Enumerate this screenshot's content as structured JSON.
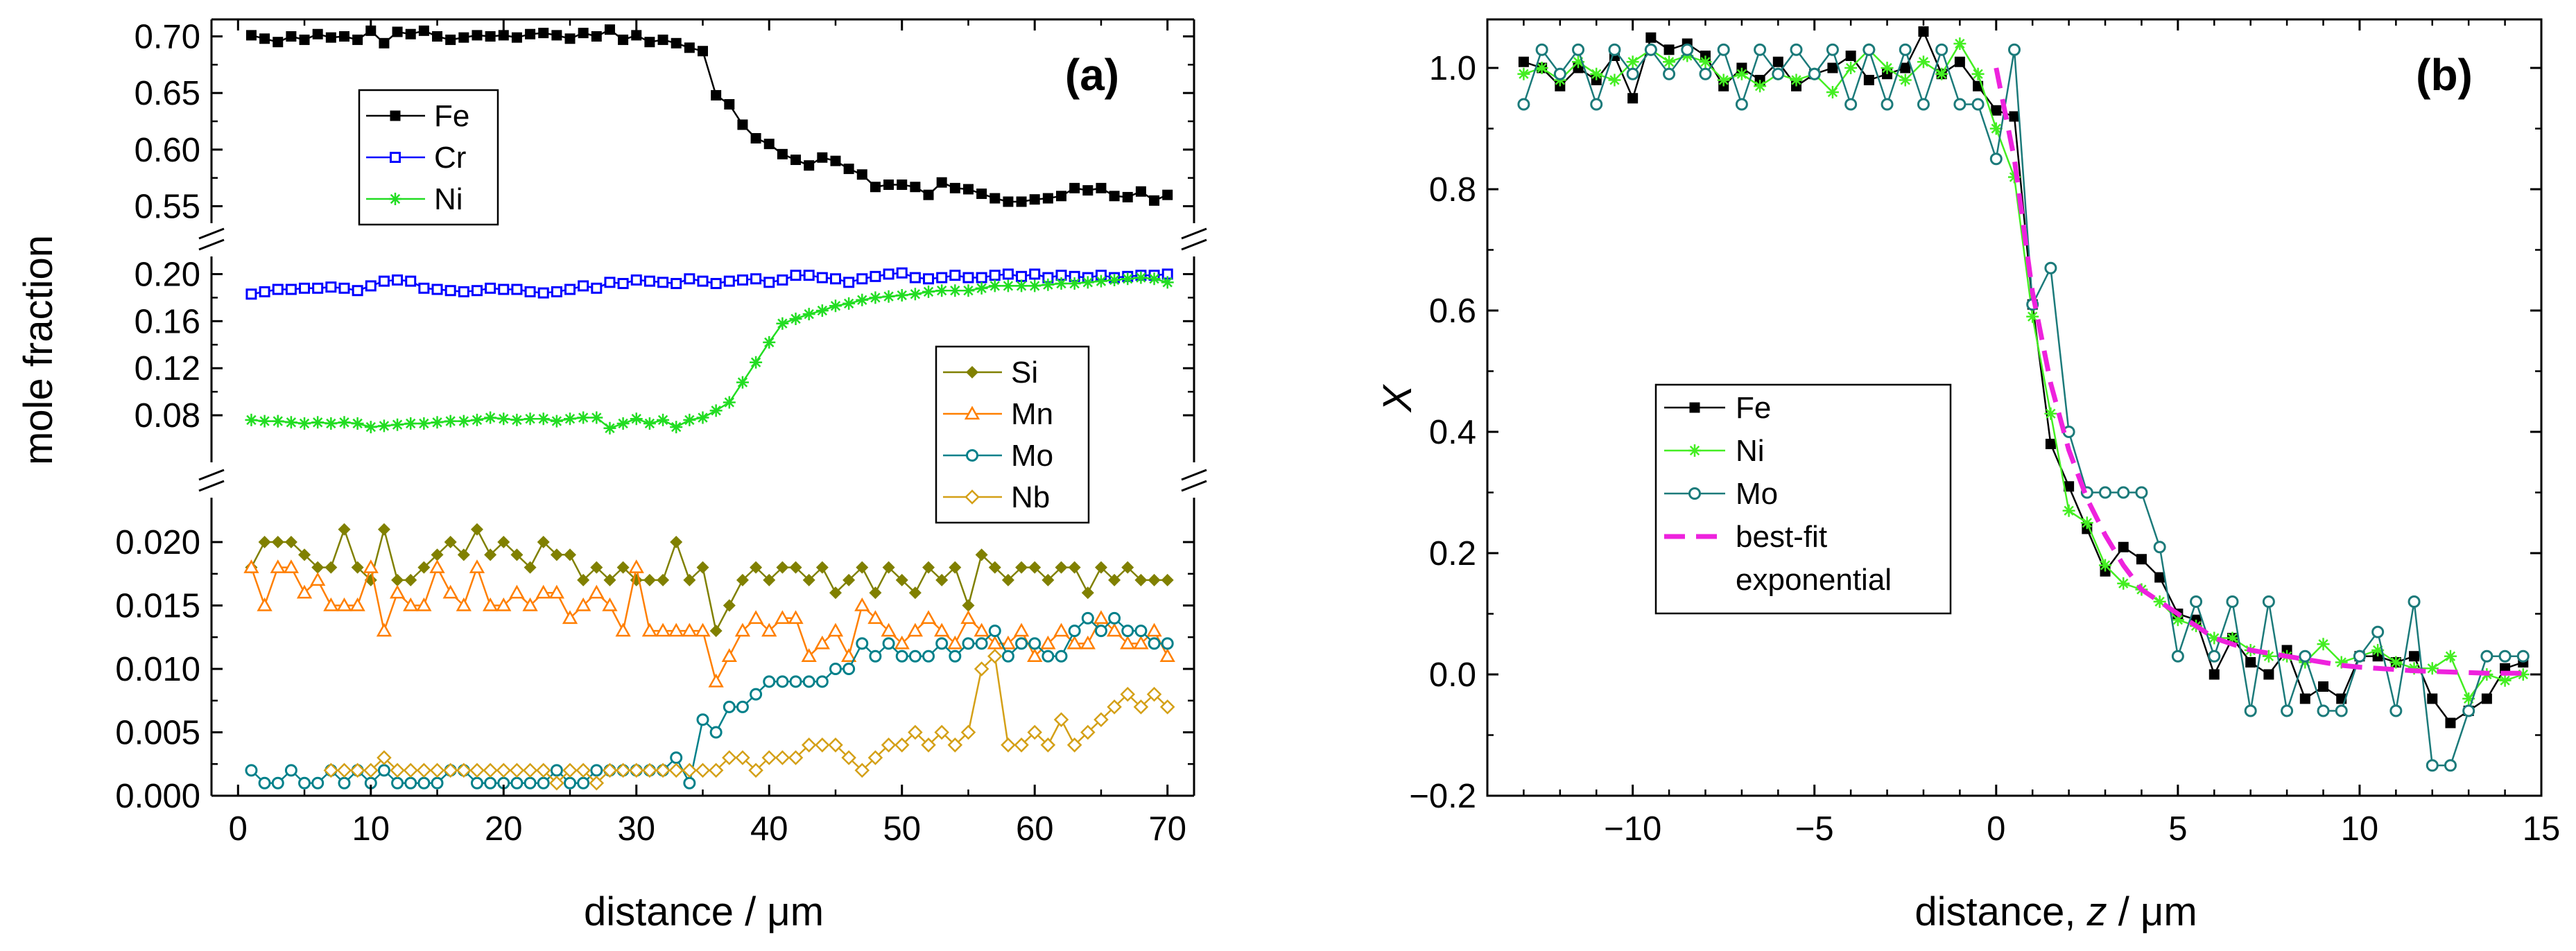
{
  "chart_data": [
    {
      "type": "line",
      "panel_label": "(a)",
      "xlabel": "distance / μm",
      "ylabel": "mole fraction",
      "xlim": [
        -2,
        72
      ],
      "x_ticks": [
        0,
        10,
        20,
        30,
        40,
        50,
        60,
        70
      ],
      "x_tick_labels": [
        "0",
        "10",
        "20",
        "30",
        "40",
        "50",
        "60",
        "70"
      ],
      "segments": [
        {
          "name": "top",
          "ylim": [
            0.535,
            0.715
          ],
          "ticks": [
            0.55,
            0.6,
            0.65,
            0.7
          ],
          "tick_labels": [
            "0.55",
            "0.60",
            "0.65",
            "0.70"
          ]
        },
        {
          "name": "middle",
          "ylim": [
            0.04,
            0.215
          ],
          "ticks": [
            0.08,
            0.12,
            0.16,
            0.2
          ],
          "tick_labels": [
            "0.08",
            "0.12",
            "0.16",
            "0.20"
          ]
        },
        {
          "name": "bottom",
          "ylim": [
            0.0,
            0.0235
          ],
          "ticks": [
            0.0,
            0.005,
            0.01,
            0.015,
            0.02
          ],
          "tick_labels": [
            "0.000",
            "0.005",
            "0.010",
            "0.015",
            "0.020"
          ]
        }
      ],
      "x": [
        1,
        2,
        3,
        4,
        5,
        6,
        7,
        8,
        9,
        10,
        11,
        12,
        13,
        14,
        15,
        16,
        17,
        18,
        19,
        20,
        21,
        22,
        23,
        24,
        25,
        26,
        27,
        28,
        29,
        30,
        31,
        32,
        33,
        34,
        35,
        36,
        37,
        38,
        39,
        40,
        41,
        42,
        43,
        44,
        45,
        46,
        47,
        48,
        49,
        50,
        51,
        52,
        53,
        54,
        55,
        56,
        57,
        58,
        59,
        60,
        61,
        62,
        63,
        64,
        65,
        66,
        67,
        68,
        69,
        70
      ],
      "series": [
        {
          "name": "Fe",
          "color": "#000000",
          "marker": "square-filled",
          "segment": "top",
          "values": [
            0.701,
            0.698,
            0.695,
            0.7,
            0.697,
            0.702,
            0.699,
            0.7,
            0.697,
            0.705,
            0.694,
            0.704,
            0.702,
            0.705,
            0.7,
            0.697,
            0.699,
            0.701,
            0.7,
            0.701,
            0.699,
            0.702,
            0.703,
            0.701,
            0.698,
            0.703,
            0.7,
            0.706,
            0.697,
            0.701,
            0.695,
            0.697,
            0.694,
            0.69,
            0.687,
            0.648,
            0.64,
            0.622,
            0.61,
            0.605,
            0.596,
            0.591,
            0.586,
            0.593,
            0.59,
            0.583,
            0.578,
            0.567,
            0.569,
            0.569,
            0.567,
            0.56,
            0.571,
            0.566,
            0.565,
            0.561,
            0.557,
            0.554,
            0.554,
            0.556,
            0.557,
            0.559,
            0.566,
            0.564,
            0.566,
            0.559,
            0.558,
            0.563,
            0.555,
            0.56
          ]
        },
        {
          "name": "Cr",
          "color": "#0000ff",
          "marker": "square-open",
          "segment": "middle",
          "values": [
            0.183,
            0.185,
            0.187,
            0.187,
            0.188,
            0.188,
            0.189,
            0.188,
            0.186,
            0.19,
            0.194,
            0.195,
            0.194,
            0.188,
            0.187,
            0.186,
            0.185,
            0.186,
            0.188,
            0.187,
            0.187,
            0.185,
            0.184,
            0.185,
            0.187,
            0.19,
            0.188,
            0.193,
            0.192,
            0.195,
            0.194,
            0.193,
            0.192,
            0.196,
            0.194,
            0.192,
            0.194,
            0.195,
            0.196,
            0.193,
            0.195,
            0.199,
            0.199,
            0.197,
            0.196,
            0.193,
            0.196,
            0.198,
            0.2,
            0.201,
            0.197,
            0.196,
            0.197,
            0.199,
            0.197,
            0.197,
            0.199,
            0.2,
            0.198,
            0.2,
            0.197,
            0.199,
            0.198,
            0.197,
            0.199,
            0.197,
            0.198,
            0.199,
            0.199,
            0.2
          ]
        },
        {
          "name": "Ni",
          "color": "#22dd22",
          "marker": "asterisk",
          "segment": "middle",
          "values": [
            0.076,
            0.075,
            0.075,
            0.074,
            0.073,
            0.074,
            0.073,
            0.074,
            0.073,
            0.07,
            0.071,
            0.072,
            0.073,
            0.073,
            0.074,
            0.075,
            0.075,
            0.076,
            0.078,
            0.077,
            0.076,
            0.077,
            0.077,
            0.075,
            0.077,
            0.078,
            0.078,
            0.069,
            0.073,
            0.077,
            0.073,
            0.076,
            0.07,
            0.076,
            0.078,
            0.084,
            0.091,
            0.108,
            0.125,
            0.142,
            0.158,
            0.162,
            0.166,
            0.169,
            0.173,
            0.175,
            0.178,
            0.18,
            0.181,
            0.182,
            0.183,
            0.185,
            0.186,
            0.186,
            0.186,
            0.188,
            0.19,
            0.19,
            0.19,
            0.19,
            0.191,
            0.192,
            0.192,
            0.193,
            0.194,
            0.195,
            0.196,
            0.197,
            0.196,
            0.193
          ]
        },
        {
          "name": "Si",
          "color": "#808000",
          "marker": "diamond-filled",
          "segment": "bottom",
          "values": [
            0.018,
            0.02,
            0.02,
            0.02,
            0.019,
            0.018,
            0.018,
            0.021,
            0.018,
            0.017,
            0.021,
            0.017,
            0.017,
            0.018,
            0.019,
            0.02,
            0.019,
            0.021,
            0.019,
            0.02,
            0.019,
            0.018,
            0.02,
            0.019,
            0.019,
            0.017,
            0.018,
            0.017,
            0.018,
            0.017,
            0.017,
            0.017,
            0.02,
            0.017,
            0.018,
            0.013,
            0.015,
            0.017,
            0.018,
            0.017,
            0.018,
            0.018,
            0.017,
            0.018,
            0.016,
            0.017,
            0.018,
            0.016,
            0.018,
            0.017,
            0.016,
            0.018,
            0.017,
            0.018,
            0.015,
            0.019,
            0.018,
            0.017,
            0.018,
            0.018,
            0.017,
            0.018,
            0.018,
            0.016,
            0.018,
            0.017,
            0.018,
            0.017,
            0.017,
            0.017
          ]
        },
        {
          "name": "Mn",
          "color": "#ff7f00",
          "marker": "triangle-open",
          "segment": "bottom",
          "values": [
            0.018,
            0.015,
            0.018,
            0.018,
            0.016,
            0.017,
            0.015,
            0.015,
            0.015,
            0.018,
            0.013,
            0.016,
            0.015,
            0.015,
            0.018,
            0.016,
            0.015,
            0.018,
            0.015,
            0.015,
            0.016,
            0.015,
            0.016,
            0.016,
            0.014,
            0.015,
            0.016,
            0.015,
            0.013,
            0.018,
            0.013,
            0.013,
            0.013,
            0.013,
            0.013,
            0.009,
            0.011,
            0.013,
            0.014,
            0.013,
            0.014,
            0.014,
            0.011,
            0.012,
            0.013,
            0.011,
            0.015,
            0.014,
            0.013,
            0.012,
            0.013,
            0.014,
            0.013,
            0.012,
            0.014,
            0.013,
            0.012,
            0.012,
            0.013,
            0.011,
            0.012,
            0.013,
            0.012,
            0.012,
            0.014,
            0.013,
            0.012,
            0.012,
            0.013,
            0.011
          ]
        },
        {
          "name": "Mo",
          "color": "#00808a",
          "marker": "circle-open",
          "segment": "bottom",
          "values": [
            0.002,
            0.001,
            0.001,
            0.002,
            0.001,
            0.001,
            0.002,
            0.001,
            0.002,
            0.001,
            0.002,
            0.001,
            0.001,
            0.001,
            0.001,
            0.002,
            0.002,
            0.001,
            0.001,
            0.001,
            0.001,
            0.001,
            0.001,
            0.002,
            0.001,
            0.001,
            0.002,
            0.002,
            0.002,
            0.002,
            0.002,
            0.002,
            0.003,
            0.001,
            0.006,
            0.005,
            0.007,
            0.007,
            0.008,
            0.009,
            0.009,
            0.009,
            0.009,
            0.009,
            0.01,
            0.01,
            0.012,
            0.011,
            0.012,
            0.011,
            0.011,
            0.011,
            0.012,
            0.011,
            0.012,
            0.012,
            0.013,
            0.011,
            0.012,
            0.012,
            0.011,
            0.011,
            0.013,
            0.014,
            0.013,
            0.014,
            0.013,
            0.013,
            0.012,
            0.012
          ]
        },
        {
          "name": "Nb",
          "color": "#d4a017",
          "marker": "diamond-open",
          "segment": "bottom",
          "values": [
            null,
            null,
            null,
            null,
            null,
            null,
            0.002,
            0.002,
            0.002,
            0.002,
            0.003,
            0.002,
            0.002,
            0.002,
            0.002,
            0.002,
            0.002,
            0.002,
            0.002,
            0.002,
            0.002,
            0.002,
            0.002,
            0.001,
            0.002,
            0.002,
            0.001,
            0.002,
            0.002,
            0.002,
            0.002,
            0.002,
            0.002,
            0.002,
            0.002,
            0.002,
            0.003,
            0.003,
            0.002,
            0.003,
            0.003,
            0.003,
            0.004,
            0.004,
            0.004,
            0.003,
            0.002,
            0.003,
            0.004,
            0.004,
            0.005,
            0.004,
            0.005,
            0.004,
            0.005,
            0.01,
            0.011,
            0.004,
            0.004,
            0.005,
            0.004,
            0.006,
            0.004,
            0.005,
            0.006,
            0.007,
            0.008,
            0.007,
            0.008,
            0.007
          ]
        }
      ],
      "legends": [
        {
          "position": "upper-left",
          "entries": [
            "Fe",
            "Cr",
            "Ni"
          ]
        },
        {
          "position": "middle-right",
          "entries": [
            "Si",
            "Mn",
            "Mo",
            "Nb"
          ]
        }
      ]
    },
    {
      "type": "line",
      "panel_label": "(b)",
      "xlabel_parts": [
        "distance, ",
        "z",
        " / μm"
      ],
      "ylabel": "X",
      "xlim": [
        -14,
        15
      ],
      "ylim": [
        -0.2,
        1.08
      ],
      "x_ticks": [
        -10,
        -5,
        0,
        5,
        10,
        15
      ],
      "x_tick_labels": [
        "−10",
        "−5",
        "0",
        "5",
        "10",
        "15"
      ],
      "y_ticks": [
        -0.2,
        0.0,
        0.2,
        0.4,
        0.6,
        0.8,
        1.0
      ],
      "y_tick_labels": [
        "−0.2",
        "0.0",
        "0.2",
        "0.4",
        "0.6",
        "0.8",
        "1.0"
      ],
      "x": [
        -13,
        -12.5,
        -12,
        -11.5,
        -11,
        -10.5,
        -10,
        -9.5,
        -9,
        -8.5,
        -8,
        -7.5,
        -7,
        -6.5,
        -6,
        -5.5,
        -5,
        -4.5,
        -4,
        -3.5,
        -3,
        -2.5,
        -2,
        -1.5,
        -1,
        -0.5,
        0,
        0.5,
        1,
        1.5,
        2,
        2.5,
        3,
        3.5,
        4,
        4.5,
        5,
        5.5,
        6,
        6.5,
        7,
        7.5,
        8,
        8.5,
        9,
        9.5,
        10,
        10.5,
        11,
        11.5,
        12,
        12.5,
        13,
        13.5,
        14,
        14.5
      ],
      "series": [
        {
          "name": "Fe",
          "color": "#000000",
          "marker": "square-filled",
          "values": [
            1.01,
            1.0,
            0.97,
            1.0,
            0.98,
            1.02,
            0.95,
            1.05,
            1.03,
            1.04,
            1.02,
            0.97,
            1.0,
            0.98,
            1.01,
            0.97,
            0.99,
            1.0,
            1.02,
            0.98,
            0.99,
            1.0,
            1.06,
            0.99,
            1.01,
            0.97,
            0.93,
            0.92,
            0.61,
            0.38,
            0.31,
            0.24,
            0.17,
            0.21,
            0.19,
            0.16,
            0.1,
            0.09,
            0.0,
            0.06,
            0.02,
            0.0,
            0.04,
            -0.04,
            -0.02,
            -0.04,
            0.03,
            0.03,
            0.02,
            0.03,
            -0.04,
            -0.08,
            -0.06,
            -0.04,
            0.01,
            0.02
          ]
        },
        {
          "name": "Ni",
          "color": "#44ee22",
          "marker": "asterisk",
          "values": [
            0.99,
            1.0,
            0.98,
            1.01,
            0.99,
            0.98,
            1.01,
            1.03,
            1.01,
            1.02,
            1.01,
            0.98,
            0.99,
            0.97,
            0.99,
            0.98,
            0.99,
            0.96,
            1.0,
            1.03,
            1.0,
            0.98,
            1.01,
            0.99,
            1.04,
            0.99,
            0.9,
            0.82,
            0.59,
            0.43,
            0.27,
            0.25,
            0.18,
            0.15,
            0.14,
            0.12,
            0.09,
            0.08,
            0.06,
            0.06,
            0.04,
            0.03,
            0.03,
            0.02,
            0.05,
            0.02,
            0.03,
            0.04,
            0.02,
            0.01,
            0.01,
            0.03,
            -0.04,
            0.0,
            -0.01,
            0.0
          ]
        },
        {
          "name": "Mo",
          "color": "#1b7a7a",
          "marker": "circle-open",
          "values": [
            0.94,
            1.03,
            0.99,
            1.03,
            0.94,
            1.03,
            0.99,
            1.03,
            0.99,
            1.03,
            0.99,
            1.03,
            0.94,
            1.03,
            0.99,
            1.03,
            0.99,
            1.03,
            0.94,
            1.03,
            0.94,
            1.03,
            0.94,
            1.03,
            0.94,
            0.94,
            0.85,
            1.03,
            0.61,
            0.67,
            0.4,
            0.3,
            0.3,
            0.3,
            0.3,
            0.21,
            0.03,
            0.12,
            0.03,
            0.12,
            -0.06,
            0.12,
            -0.06,
            0.03,
            -0.06,
            -0.06,
            0.03,
            0.07,
            -0.06,
            0.12,
            -0.15,
            -0.15,
            -0.06,
            0.03,
            0.03,
            0.03
          ]
        },
        {
          "name": "best-fit exponential",
          "color": "#ee22dd",
          "marker": "none",
          "style": "dashed",
          "values": [
            null,
            null,
            null,
            null,
            null,
            null,
            null,
            null,
            null,
            null,
            null,
            null,
            null,
            null,
            null,
            null,
            null,
            null,
            null,
            null,
            null,
            null,
            null,
            null,
            null,
            null,
            1.0,
            0.85,
            0.63,
            0.48,
            0.37,
            0.29,
            0.23,
            0.18,
            0.14,
            0.12,
            0.1,
            0.08,
            0.06,
            0.05,
            0.04,
            0.035,
            0.03,
            0.025,
            0.02,
            0.015,
            0.012,
            0.01,
            0.008,
            0.006,
            0.005,
            0.004,
            0.003,
            0.002,
            0.002,
            0.002
          ]
        }
      ],
      "legend": {
        "position": "center-left",
        "entries": [
          "Fe",
          "Ni",
          "Mo",
          "best-fit",
          "exponential"
        ]
      }
    }
  ]
}
